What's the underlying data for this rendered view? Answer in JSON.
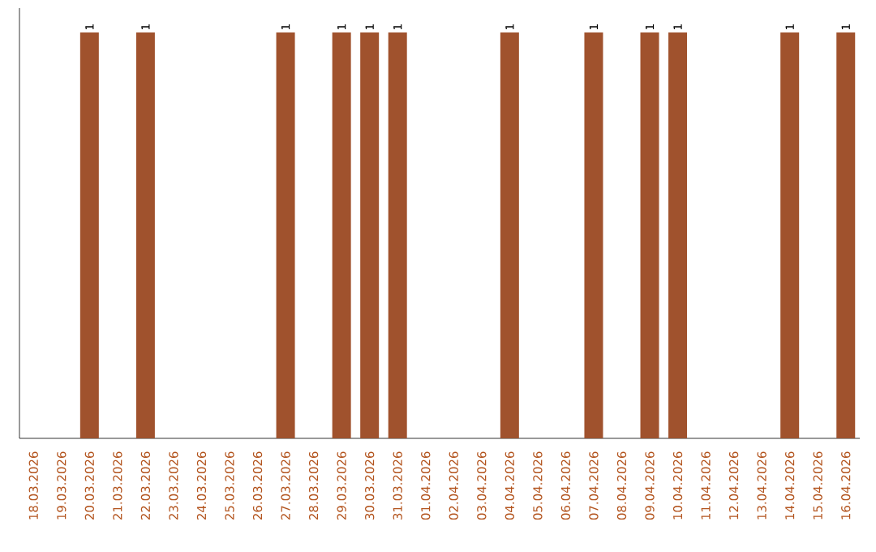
{
  "chart_data": {
    "type": "bar",
    "color": "#a0522d",
    "categories": [
      "18.03.2026",
      "19.03.2026",
      "20.03.2026",
      "21.03.2026",
      "22.03.2026",
      "23.03.2026",
      "24.03.2026",
      "25.03.2026",
      "26.03.2026",
      "27.03.2026",
      "28.03.2026",
      "29.03.2026",
      "30.03.2026",
      "31.03.2026",
      "01.04.2026",
      "02.04.2026",
      "03.04.2026",
      "04.04.2026",
      "05.04.2026",
      "06.04.2026",
      "07.04.2026",
      "08.04.2026",
      "09.04.2026",
      "10.04.2026",
      "11.04.2026",
      "12.04.2026",
      "13.04.2026",
      "14.04.2026",
      "15.04.2026",
      "16.04.2026"
    ],
    "values": [
      0,
      0,
      1,
      0,
      1,
      0,
      0,
      0,
      0,
      1,
      0,
      1,
      1,
      1,
      0,
      0,
      0,
      1,
      0,
      0,
      1,
      0,
      1,
      1,
      0,
      0,
      0,
      1,
      0,
      1
    ],
    "value_labels": [
      null,
      null,
      "1",
      null,
      "1",
      null,
      null,
      null,
      null,
      "1",
      null,
      "1",
      "1",
      "1",
      null,
      null,
      null,
      "1",
      null,
      null,
      "1",
      null,
      "1",
      "1",
      null,
      null,
      null,
      "1",
      null,
      "1"
    ]
  }
}
